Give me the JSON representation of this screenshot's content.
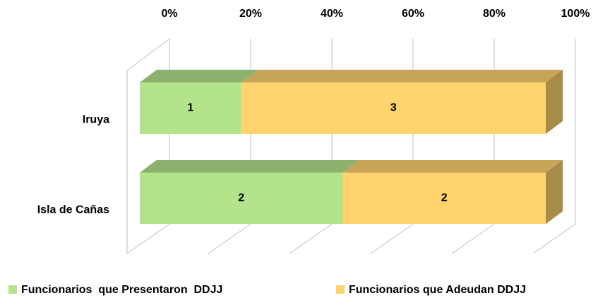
{
  "chart_data": {
    "type": "bar",
    "orientation": "horizontal",
    "stacked": "percent",
    "three_d": true,
    "categories": [
      "Iruya",
      "Isla de Cañas"
    ],
    "series": [
      {
        "name": "Funcionarios  que Presentaron  DDJJ",
        "color": "#b3e38a",
        "values": [
          1,
          2
        ]
      },
      {
        "name": "Funcionarios que Adeudan DDJJ",
        "color": "#ffd36e",
        "values": [
          3,
          2
        ]
      }
    ],
    "xlim": [
      0,
      100
    ],
    "xticks": [
      {
        "value": 0,
        "label": "0%"
      },
      {
        "value": 20,
        "label": "20%"
      },
      {
        "value": 40,
        "label": "40%"
      },
      {
        "value": 60,
        "label": "60%"
      },
      {
        "value": 80,
        "label": "80%"
      },
      {
        "value": 100,
        "label": "100%"
      }
    ],
    "grid": true,
    "legend": "bottom"
  }
}
